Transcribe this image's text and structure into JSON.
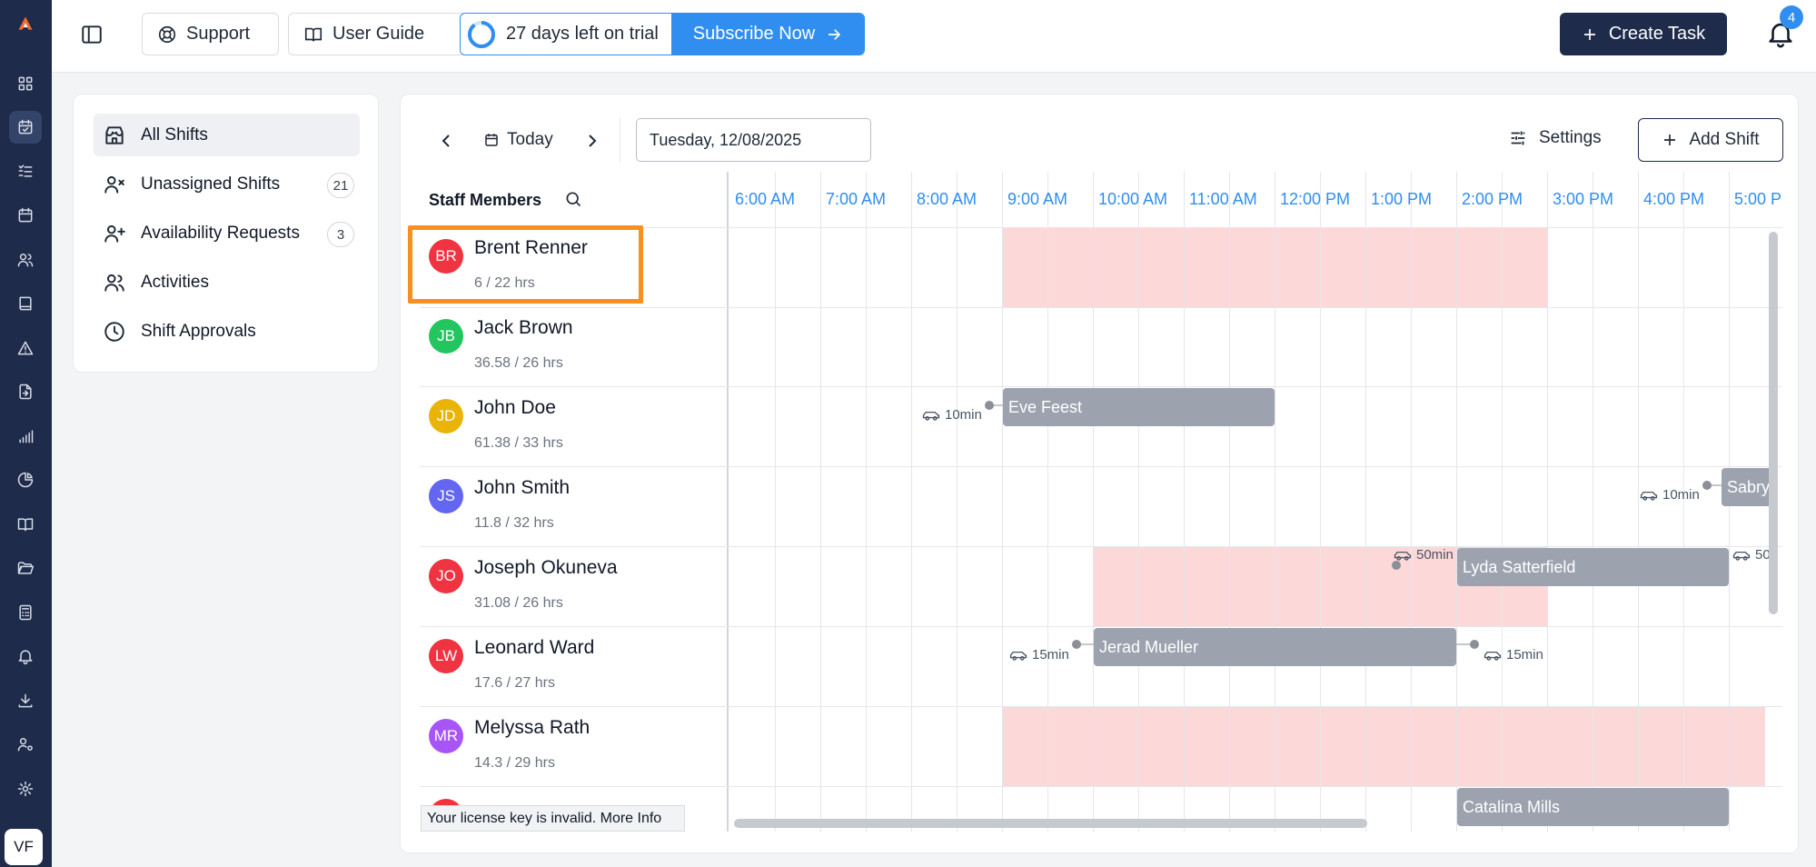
{
  "app": {
    "logo": "app-logo-icon",
    "user_initials": "VF"
  },
  "sidebar": {
    "icons": [
      "dashboard-icon",
      "calendar-check-icon",
      "list-check-icon",
      "calendar-icon",
      "users-icon",
      "book-icon",
      "alert-triangle-icon",
      "file-import-icon",
      "bar-chart-icon",
      "pie-chart-icon",
      "book-open-icon",
      "folder-open-icon",
      "calculator-icon",
      "bell-ring-icon",
      "download-icon",
      "user-cog-icon",
      "settings-icon"
    ],
    "active_index": 1
  },
  "topbar": {
    "support_label": "Support",
    "user_guide_label": "User Guide",
    "trial_text": "27 days left on trial",
    "subscribe_label": "Subscribe Now",
    "create_task_label": "Create Task",
    "notification_count": "4"
  },
  "left_panel": {
    "items": [
      {
        "label": "All Shifts",
        "icon": "store-icon",
        "count": null,
        "active": true
      },
      {
        "label": "Unassigned Shifts",
        "icon": "user-x-icon",
        "count": "21",
        "active": false
      },
      {
        "label": "Availability Requests",
        "icon": "user-plus-icon",
        "count": "3",
        "active": false
      },
      {
        "label": "Activities",
        "icon": "users-icon",
        "count": null,
        "active": false
      },
      {
        "label": "Shift Approvals",
        "icon": "clock-icon",
        "count": null,
        "active": false
      }
    ]
  },
  "toolbar": {
    "today_label": "Today",
    "date_value": "Tuesday, 12/08/2025",
    "settings_label": "Settings",
    "add_shift_label": "Add Shift"
  },
  "schedule": {
    "staff_header": "Staff Members",
    "hours": [
      "6:00 AM",
      "7:00 AM",
      "8:00 AM",
      "9:00 AM",
      "10:00 AM",
      "11:00 AM",
      "12:00 PM",
      "1:00 PM",
      "2:00 PM",
      "3:00 PM",
      "4:00 PM",
      "5:00 PM"
    ],
    "staff": [
      {
        "initials": "BR",
        "name": "Brent Renner",
        "hours": "6 / 22 hrs",
        "color": "#ef3340"
      },
      {
        "initials": "JB",
        "name": "Jack Brown",
        "hours": "36.58 / 26 hrs",
        "color": "#22c55e"
      },
      {
        "initials": "JD",
        "name": "John Doe",
        "hours": "61.38 / 33 hrs",
        "color": "#eab308"
      },
      {
        "initials": "JS",
        "name": "John Smith",
        "hours": "11.8 / 32 hrs",
        "color": "#6366f1"
      },
      {
        "initials": "JO",
        "name": "Joseph Okuneva",
        "hours": "31.08 / 26 hrs",
        "color": "#ef3340"
      },
      {
        "initials": "LW",
        "name": "Leonard Ward",
        "hours": "17.6 / 27 hrs",
        "color": "#ef3340"
      },
      {
        "initials": "MR",
        "name": "Melyssa Rath",
        "hours": "14.3 / 29 hrs",
        "color": "#a855f7"
      },
      {
        "initials": "",
        "name": "",
        "hours": "",
        "color": "#ef3340"
      }
    ],
    "shifts": [
      {
        "row": 2,
        "title": "Eve Feest",
        "travel": "10min"
      },
      {
        "row": 3,
        "title": "Sabry",
        "travel": "10min"
      },
      {
        "row": 4,
        "title": "Lyda Satterfield",
        "travel_before": "50min",
        "travel_after": "50"
      },
      {
        "row": 5,
        "title": "Jerad Mueller",
        "travel_before": "15min",
        "travel_after": "15min"
      },
      {
        "row": 7,
        "title": "Catalina Mills"
      }
    ],
    "license_notice": "Your license key is invalid. More Info"
  },
  "colors": {
    "primary": "#1e2b4a",
    "accent": "#2f8ef0",
    "unavailable": "#fdd8d8",
    "shift": "#9ca3af",
    "highlight": "#f7901e"
  }
}
